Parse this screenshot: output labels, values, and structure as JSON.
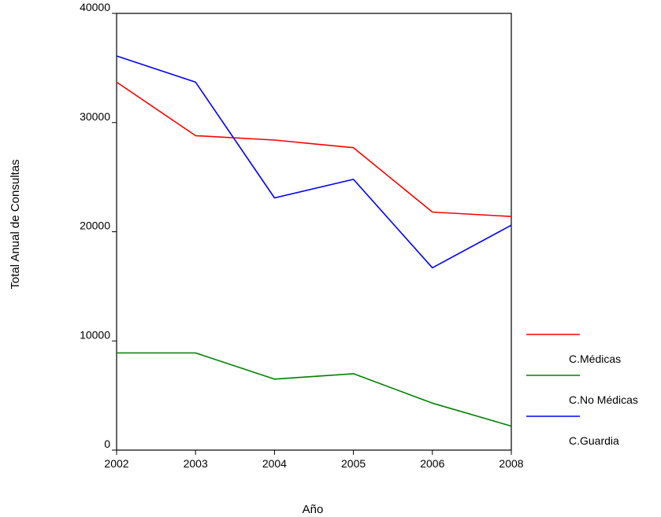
{
  "chart_data": {
    "type": "line",
    "x": [
      2002,
      2003,
      2004,
      2005,
      2006,
      2008
    ],
    "x_tick_labels": [
      "2002",
      "2003",
      "2004",
      "2005",
      "2006",
      "2008"
    ],
    "y_tick_labels": [
      "0",
      "10000",
      "20000",
      "30000",
      "40000"
    ],
    "ylim": [
      0,
      40000
    ],
    "xlabel": "Año",
    "ylabel": "Total Anual de Consultas",
    "grid": false,
    "legend_position": "right",
    "series": [
      {
        "name": "C.Médicas",
        "color": "#ff0000",
        "values": [
          33700,
          28800,
          28400,
          27700,
          21800,
          21400
        ]
      },
      {
        "name": "C.No Médicas",
        "color": "#008000",
        "values": [
          8900,
          8900,
          6500,
          7000,
          4300,
          2200
        ]
      },
      {
        "name": "C.Guardia",
        "color": "#0000ff",
        "values": [
          36100,
          33700,
          23100,
          24800,
          16700,
          20600
        ]
      }
    ]
  }
}
